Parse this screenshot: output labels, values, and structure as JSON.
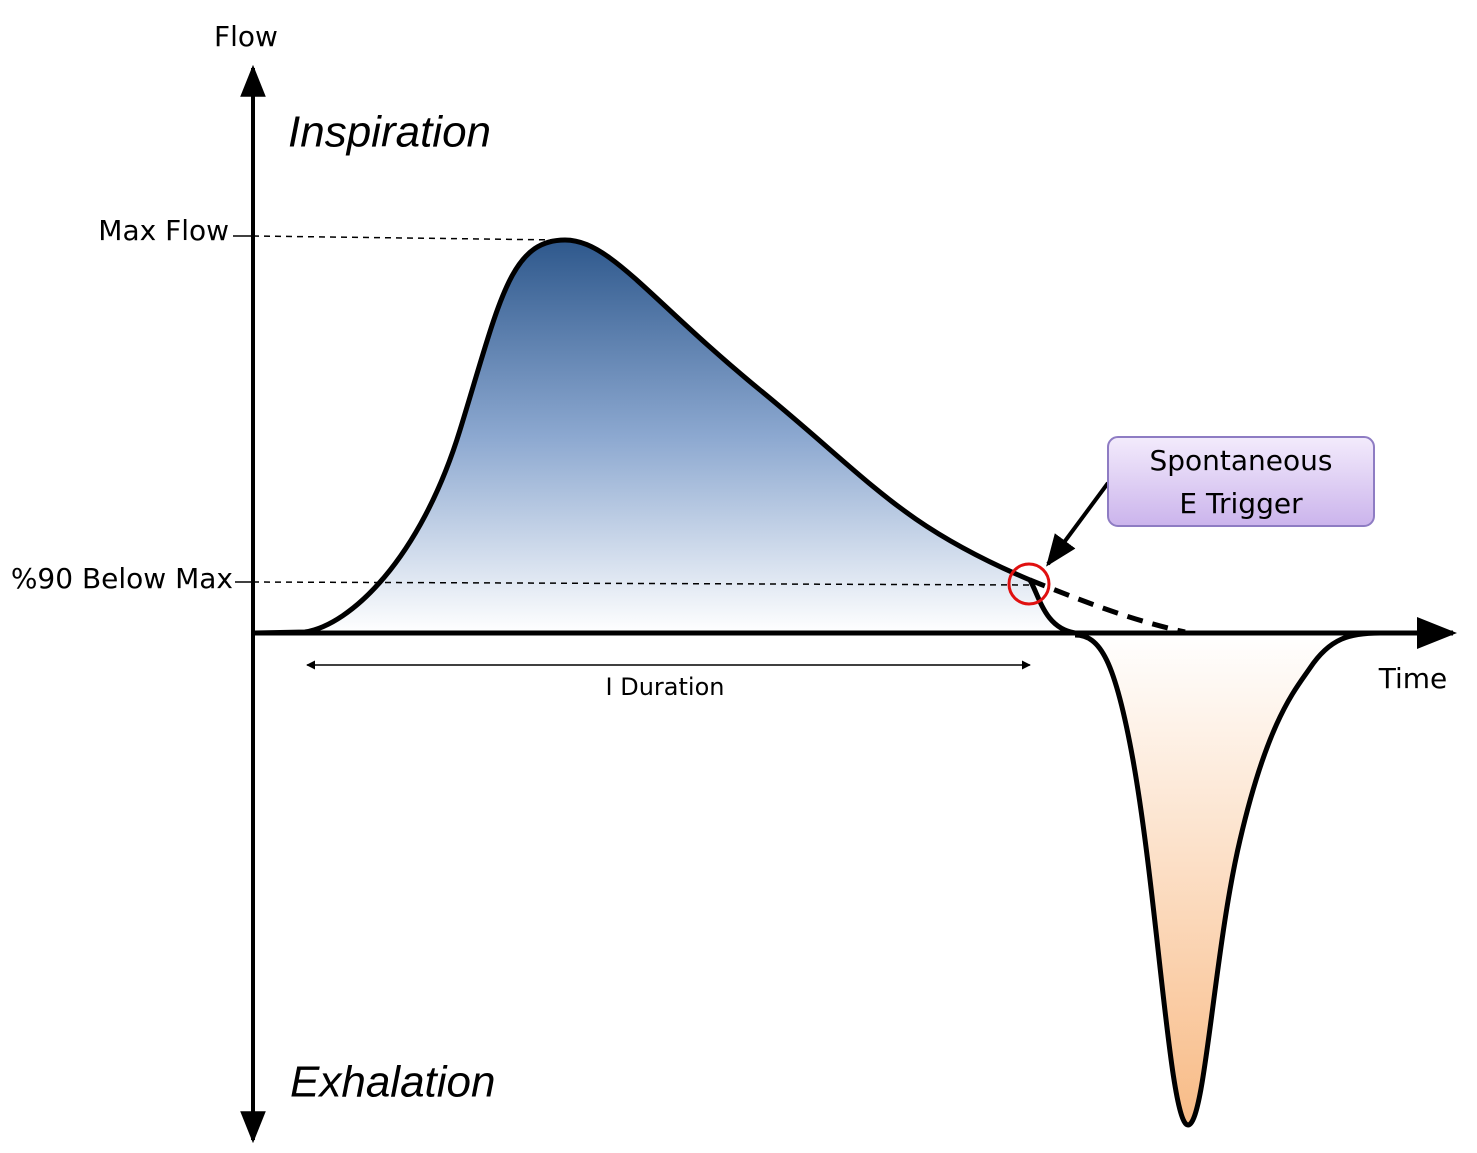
{
  "axes": {
    "y_label": "Flow",
    "x_label": "Time"
  },
  "regions": {
    "top": "Inspiration",
    "bottom": "Exhalation"
  },
  "levels": {
    "max": "Max Flow",
    "threshold": "%90 Below Max"
  },
  "annotations": {
    "trigger": [
      "Spontaneous",
      "E Trigger"
    ],
    "duration": "I Duration"
  }
}
